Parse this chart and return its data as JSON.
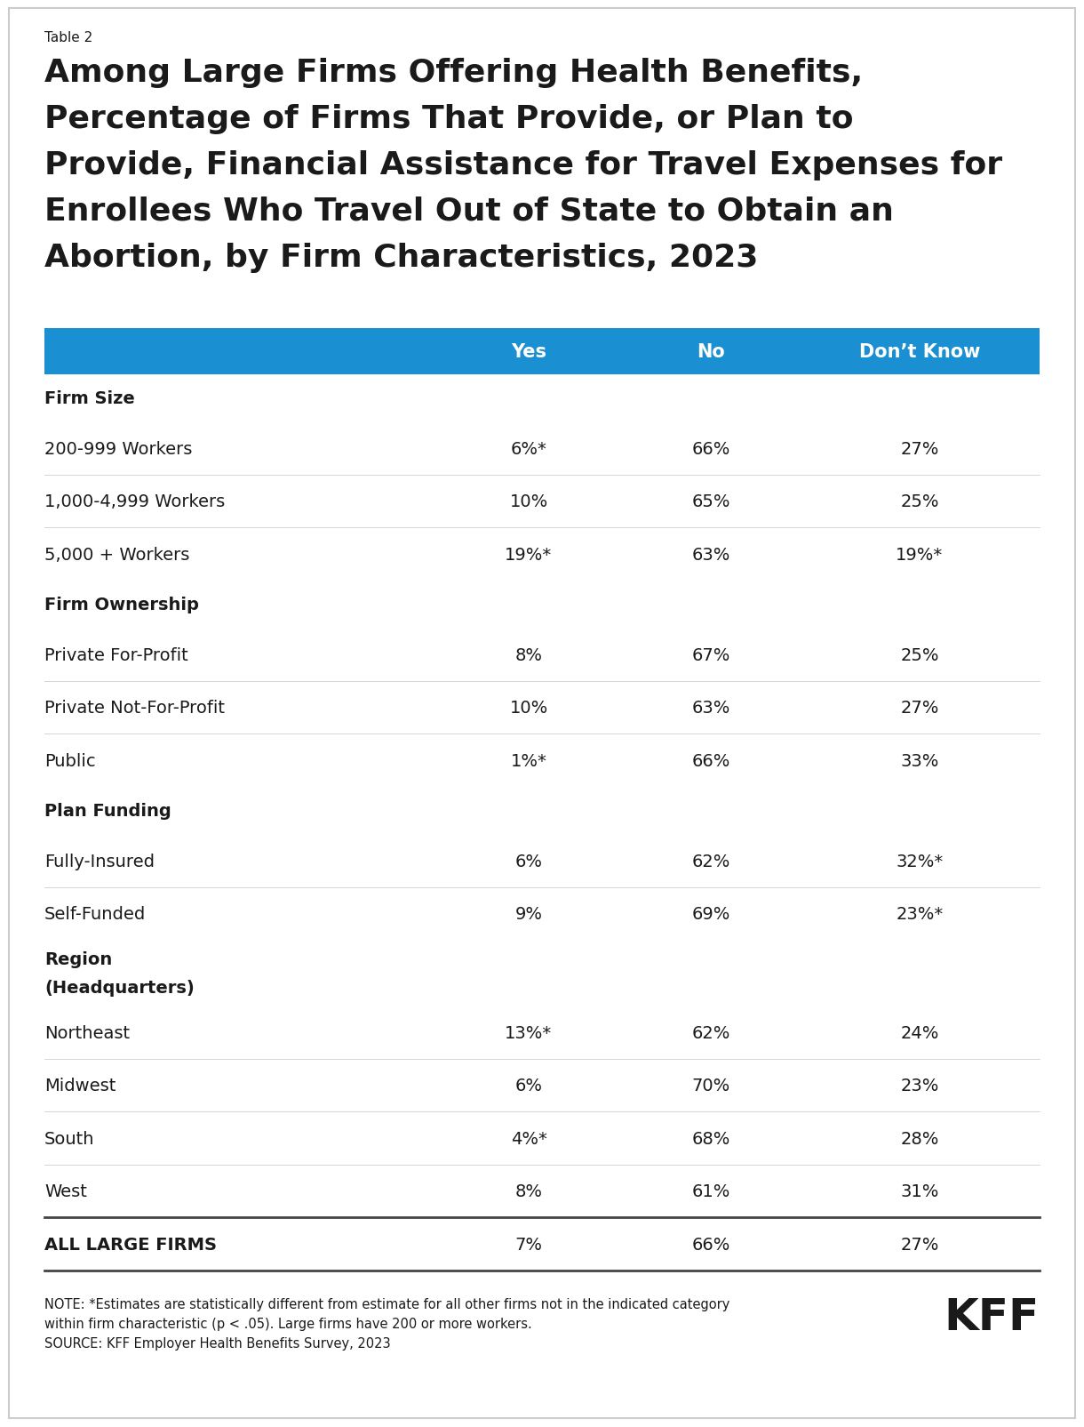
{
  "table_label": "Table 2",
  "title_lines": [
    "Among Large Firms Offering Health Benefits,",
    "Percentage of Firms That Provide, or Plan to",
    "Provide, Financial Assistance for Travel Expenses for",
    "Enrollees Who Travel Out of State to Obtain an",
    "Abortion, by Firm Characteristics, 2023"
  ],
  "header": [
    "",
    "Yes",
    "No",
    "Don’t Know"
  ],
  "header_bg": "#1a8fd1",
  "header_text_color": "#ffffff",
  "rows": [
    {
      "label": "Firm Size",
      "yes": "",
      "no": "",
      "dk": "",
      "bold": true,
      "is_category": true,
      "is_total": false,
      "multiline": false
    },
    {
      "label": "200-999 Workers",
      "yes": "6%*",
      "no": "66%",
      "dk": "27%",
      "bold": false,
      "is_category": false,
      "is_total": false,
      "multiline": false
    },
    {
      "label": "1,000-4,999 Workers",
      "yes": "10%",
      "no": "65%",
      "dk": "25%",
      "bold": false,
      "is_category": false,
      "is_total": false,
      "multiline": false
    },
    {
      "label": "5,000 + Workers",
      "yes": "19%*",
      "no": "63%",
      "dk": "19%*",
      "bold": false,
      "is_category": false,
      "is_total": false,
      "multiline": false
    },
    {
      "label": "Firm Ownership",
      "yes": "",
      "no": "",
      "dk": "",
      "bold": true,
      "is_category": true,
      "is_total": false,
      "multiline": false
    },
    {
      "label": "Private For-Profit",
      "yes": "8%",
      "no": "67%",
      "dk": "25%",
      "bold": false,
      "is_category": false,
      "is_total": false,
      "multiline": false
    },
    {
      "label": "Private Not-For-Profit",
      "yes": "10%",
      "no": "63%",
      "dk": "27%",
      "bold": false,
      "is_category": false,
      "is_total": false,
      "multiline": false
    },
    {
      "label": "Public",
      "yes": "1%*",
      "no": "66%",
      "dk": "33%",
      "bold": false,
      "is_category": false,
      "is_total": false,
      "multiline": false
    },
    {
      "label": "Plan Funding",
      "yes": "",
      "no": "",
      "dk": "",
      "bold": true,
      "is_category": true,
      "is_total": false,
      "multiline": false
    },
    {
      "label": "Fully-Insured",
      "yes": "6%",
      "no": "62%",
      "dk": "32%*",
      "bold": false,
      "is_category": false,
      "is_total": false,
      "multiline": false
    },
    {
      "label": "Self-Funded",
      "yes": "9%",
      "no": "69%",
      "dk": "23%*",
      "bold": false,
      "is_category": false,
      "is_total": false,
      "multiline": false
    },
    {
      "label": "Region\n(Headquarters)",
      "yes": "",
      "no": "",
      "dk": "",
      "bold": true,
      "is_category": true,
      "is_total": false,
      "multiline": true
    },
    {
      "label": "Northeast",
      "yes": "13%*",
      "no": "62%",
      "dk": "24%",
      "bold": false,
      "is_category": false,
      "is_total": false,
      "multiline": false
    },
    {
      "label": "Midwest",
      "yes": "6%",
      "no": "70%",
      "dk": "23%",
      "bold": false,
      "is_category": false,
      "is_total": false,
      "multiline": false
    },
    {
      "label": "South",
      "yes": "4%*",
      "no": "68%",
      "dk": "28%",
      "bold": false,
      "is_category": false,
      "is_total": false,
      "multiline": false
    },
    {
      "label": "West",
      "yes": "8%",
      "no": "61%",
      "dk": "31%",
      "bold": false,
      "is_category": false,
      "is_total": false,
      "multiline": false
    },
    {
      "label": "ALL LARGE FIRMS",
      "yes": "7%",
      "no": "66%",
      "dk": "27%",
      "bold": true,
      "is_category": false,
      "is_total": true,
      "multiline": false
    }
  ],
  "note_line1": "NOTE: *Estimates are statistically different from estimate for all other firms not in the indicated category",
  "note_line2": "within firm characteristic (p < .05). Large firms have 200 or more workers.",
  "source": "SOURCE: KFF Employer Health Benefits Survey, 2023",
  "kff_logo": "KFF",
  "bg_color": "#ffffff",
  "text_color": "#1a1a1a",
  "border_color": "#cccccc",
  "table_label_fontsize": 11,
  "title_fontsize": 26,
  "header_fontsize": 15,
  "row_fontsize": 14,
  "note_fontsize": 10.5,
  "kff_fontsize": 36
}
